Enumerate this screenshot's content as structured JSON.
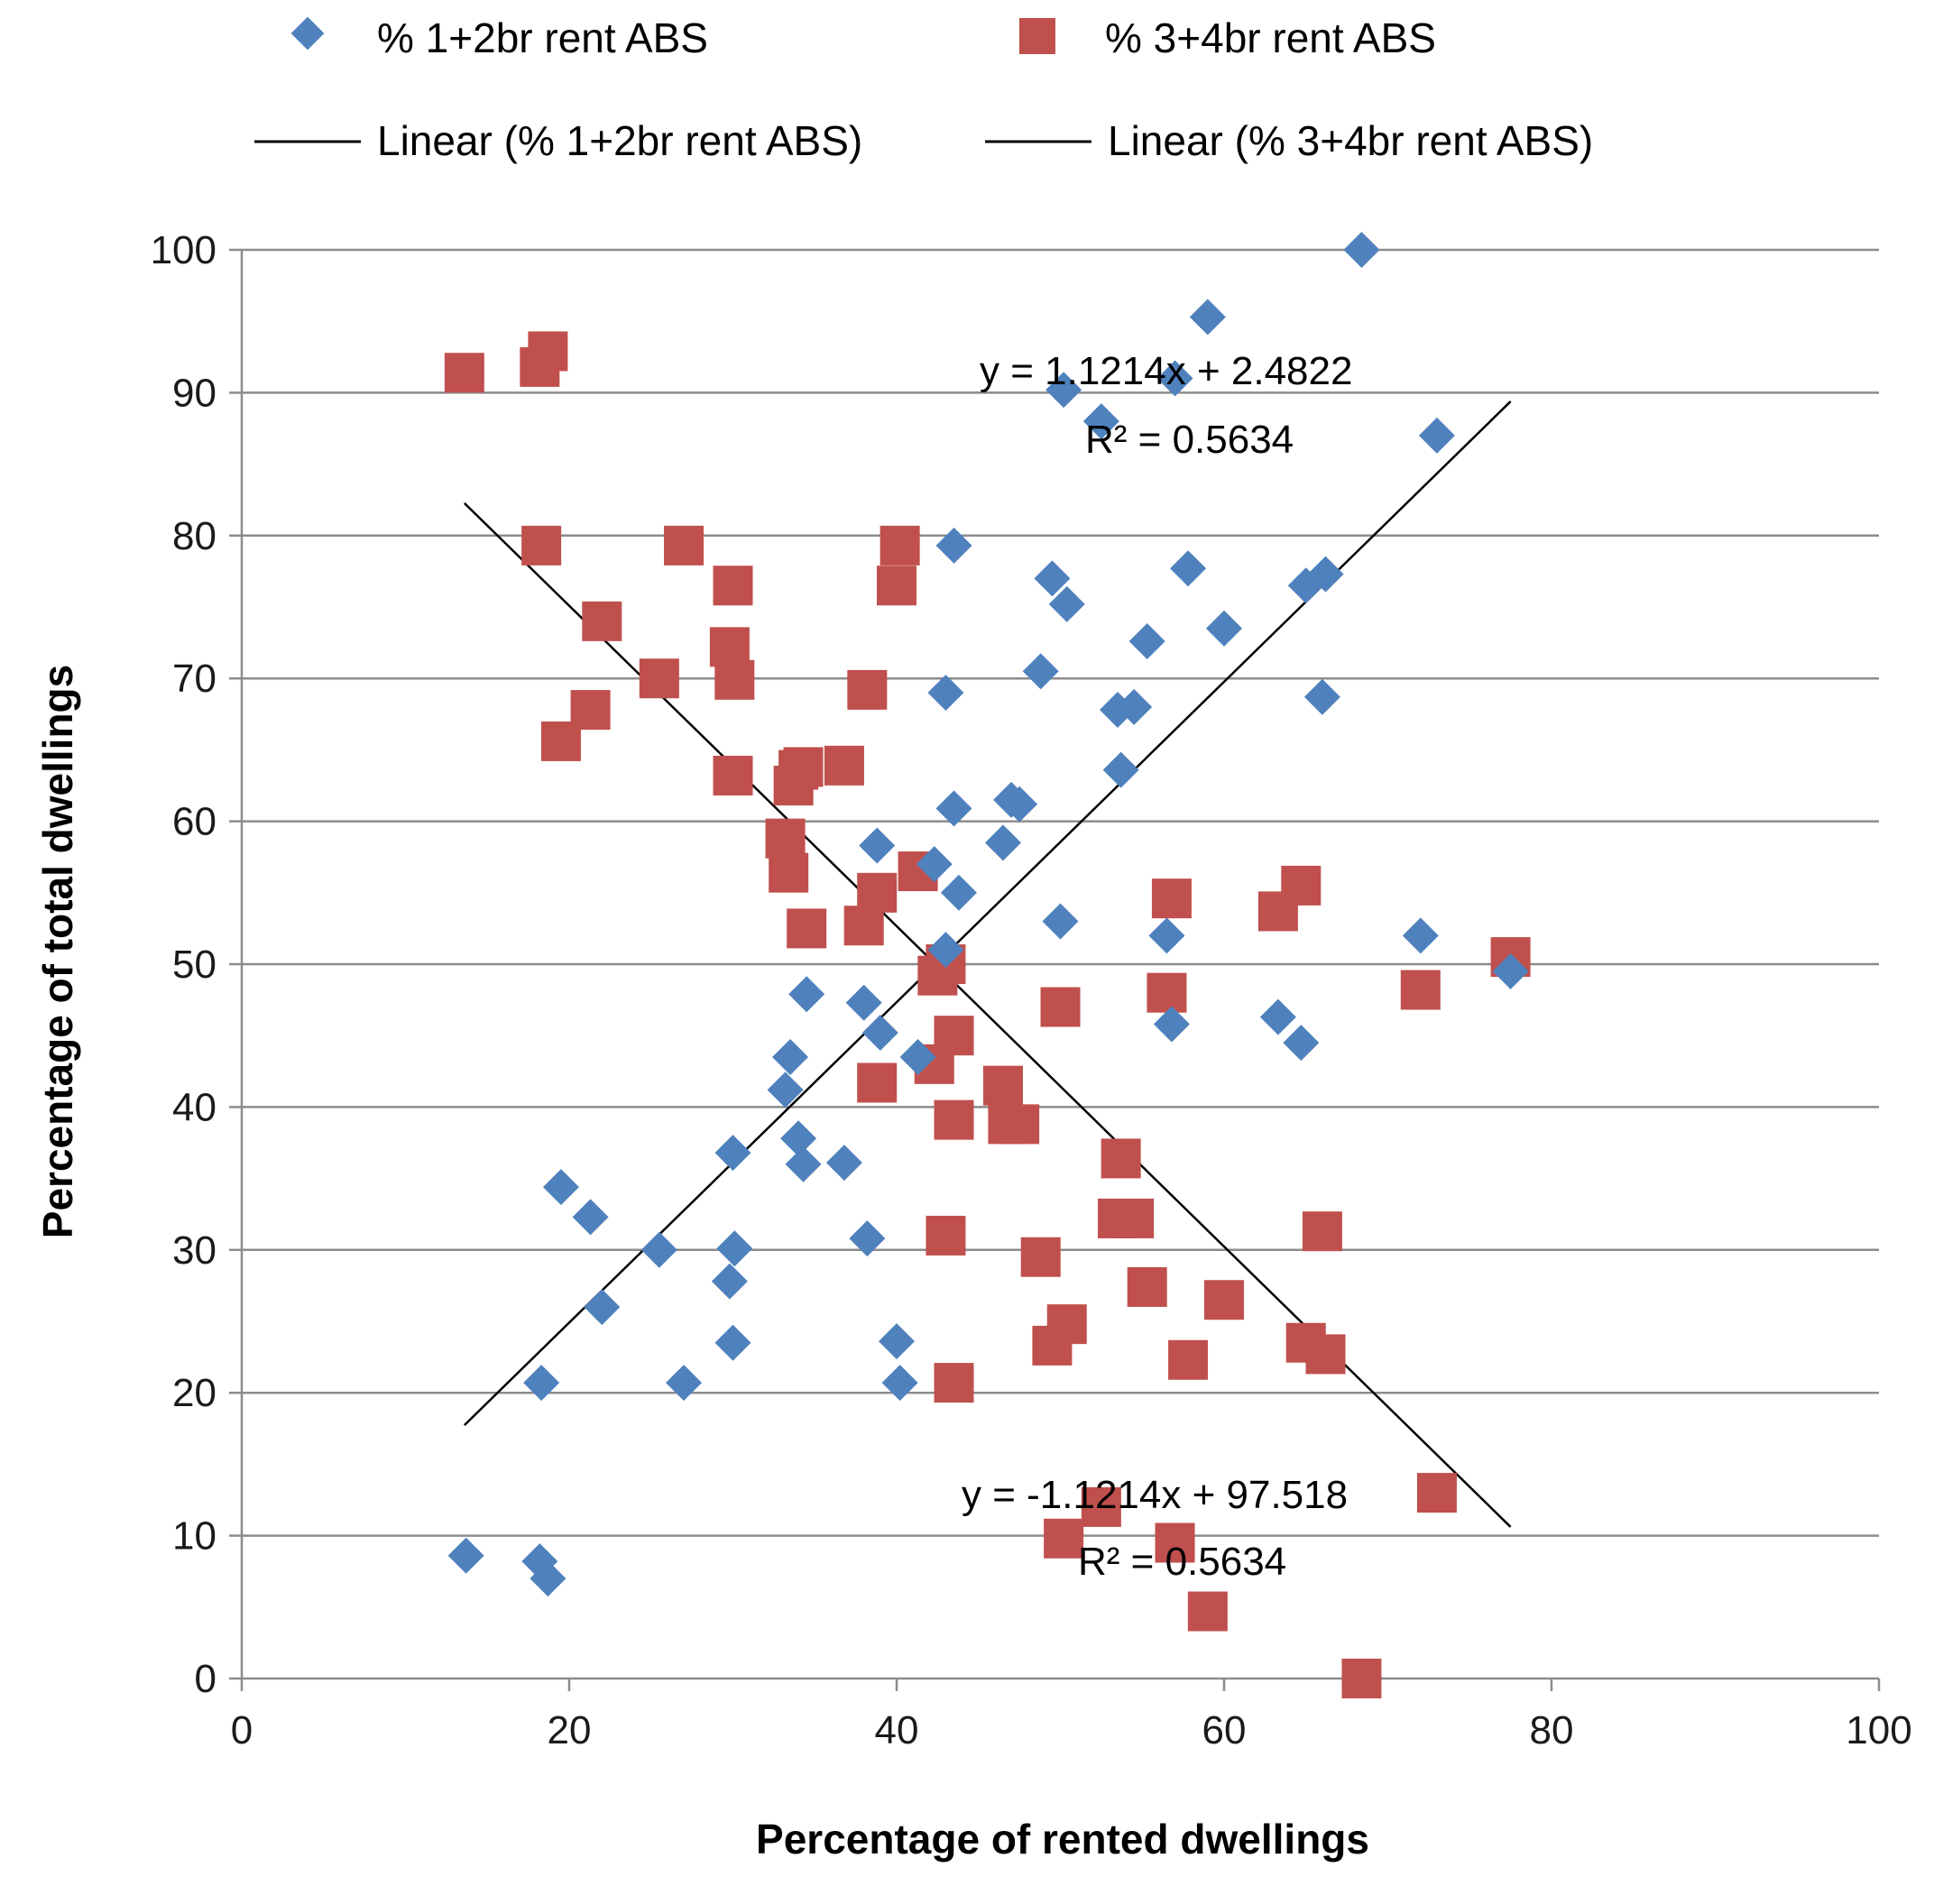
{
  "chart_data": {
    "type": "scatter",
    "title": "",
    "xlabel": "Percentage of rented dwellings",
    "ylabel": "Percentage of total dwellings",
    "xlim": [
      0,
      100
    ],
    "ylim": [
      0,
      100
    ],
    "xticks": [
      "0",
      "20",
      "40",
      "60",
      "80",
      "100"
    ],
    "yticks": [
      "0",
      "10",
      "20",
      "30",
      "40",
      "50",
      "60",
      "70",
      "80",
      "90",
      "100"
    ],
    "grid": "horizontal",
    "legend_position": "top",
    "legend": {
      "series1": "% 1+2br rent ABS",
      "series2": "% 3+4br rent ABS",
      "trend1": "Linear (% 1+2br rent ABS)",
      "trend2": "Linear (% 3+4br rent ABS)"
    },
    "series": [
      {
        "name": "% 1+2br rent ABS",
        "marker": "diamond",
        "color": "#4F81BD",
        "points": [
          [
            68.4,
            100
          ],
          [
            59,
            95.3
          ],
          [
            50.2,
            90.2
          ],
          [
            52.5,
            88
          ],
          [
            57,
            91
          ],
          [
            73,
            87
          ],
          [
            43.5,
            79.3
          ],
          [
            57.8,
            77.7
          ],
          [
            49.5,
            77
          ],
          [
            50.4,
            75.2
          ],
          [
            65,
            76.5
          ],
          [
            66.2,
            77.3
          ],
          [
            60,
            73.5
          ],
          [
            55.3,
            72.6
          ],
          [
            48.8,
            70.5
          ],
          [
            43,
            69
          ],
          [
            66,
            68.7
          ],
          [
            53.5,
            67.8
          ],
          [
            54.5,
            68
          ],
          [
            53.7,
            63.6
          ],
          [
            43.5,
            60.9
          ],
          [
            47,
            61.5
          ],
          [
            47.5,
            61.2
          ],
          [
            38.8,
            58.3
          ],
          [
            46.5,
            58.5
          ],
          [
            42.3,
            57
          ],
          [
            43.8,
            55
          ],
          [
            50,
            53
          ],
          [
            56.5,
            52
          ],
          [
            72,
            52
          ],
          [
            43,
            51
          ],
          [
            77.5,
            49.5
          ],
          [
            34.5,
            47.9
          ],
          [
            38,
            47.3
          ],
          [
            39,
            45.2
          ],
          [
            56.8,
            45.8
          ],
          [
            63.3,
            46.3
          ],
          [
            64.7,
            44.5
          ],
          [
            41.3,
            43.5
          ],
          [
            33.5,
            43.5
          ],
          [
            33.2,
            41.2
          ],
          [
            34,
            37.8
          ],
          [
            34.3,
            36
          ],
          [
            36.8,
            36.1
          ],
          [
            30,
            36.8
          ],
          [
            19.5,
            34.4
          ],
          [
            21.3,
            32.3
          ],
          [
            25.5,
            30
          ],
          [
            30.1,
            30.1
          ],
          [
            38.2,
            30.8
          ],
          [
            29.8,
            27.8
          ],
          [
            22,
            26
          ],
          [
            30,
            23.5
          ],
          [
            40,
            23.6
          ],
          [
            18.3,
            20.7
          ],
          [
            27,
            20.7
          ],
          [
            40.2,
            20.7
          ],
          [
            13.7,
            8.6
          ],
          [
            18.2,
            8.2
          ],
          [
            18.7,
            7
          ]
        ]
      },
      {
        "name": "% 3+4br rent ABS",
        "marker": "square",
        "color": "#C0504D",
        "points": [
          [
            13.6,
            91.4
          ],
          [
            18.2,
            91.8
          ],
          [
            18.7,
            92.9
          ],
          [
            18.3,
            79.3
          ],
          [
            27,
            79.3
          ],
          [
            40.2,
            79.3
          ],
          [
            30,
            76.5
          ],
          [
            40,
            76.5
          ],
          [
            22,
            74
          ],
          [
            29.8,
            72.2
          ],
          [
            25.5,
            70
          ],
          [
            30.1,
            69.9
          ],
          [
            38.2,
            69.2
          ],
          [
            21.3,
            67.8
          ],
          [
            19.5,
            65.6
          ],
          [
            30,
            63.2
          ],
          [
            34,
            63.6
          ],
          [
            36.8,
            63.9
          ],
          [
            34.3,
            63.8
          ],
          [
            33.7,
            62.5
          ],
          [
            33.2,
            58.8
          ],
          [
            33.4,
            56.4
          ],
          [
            41.3,
            56.5
          ],
          [
            38.8,
            55
          ],
          [
            34.5,
            52.5
          ],
          [
            38,
            52.7
          ],
          [
            56.8,
            54.6
          ],
          [
            63.3,
            53.7
          ],
          [
            64.7,
            55.5
          ],
          [
            43,
            50
          ],
          [
            42.5,
            49.2
          ],
          [
            56.5,
            48
          ],
          [
            72,
            48.2
          ],
          [
            77.5,
            50.5
          ],
          [
            50,
            47
          ],
          [
            43.5,
            45
          ],
          [
            42.3,
            43
          ],
          [
            38.8,
            41.7
          ],
          [
            46.5,
            41.5
          ],
          [
            47.5,
            38.8
          ],
          [
            46.8,
            38.8
          ],
          [
            43.5,
            39.1
          ],
          [
            53.7,
            36.4
          ],
          [
            53.5,
            32.2
          ],
          [
            54.5,
            32.2
          ],
          [
            66,
            31.3
          ],
          [
            43,
            31
          ],
          [
            48.8,
            29.5
          ],
          [
            55.3,
            27.4
          ],
          [
            60,
            26.5
          ],
          [
            50.4,
            24.8
          ],
          [
            49.5,
            23.3
          ],
          [
            65,
            23.5
          ],
          [
            66.2,
            22.7
          ],
          [
            57.8,
            22.3
          ],
          [
            43.5,
            20.7
          ],
          [
            52.5,
            12
          ],
          [
            73,
            13
          ],
          [
            50.2,
            9.8
          ],
          [
            57,
            9.5
          ],
          [
            59,
            4.7
          ],
          [
            68.4,
            0
          ]
        ]
      }
    ],
    "trendlines": [
      {
        "series": "% 1+2br rent ABS",
        "slope": 1.1214,
        "intercept": 2.4822,
        "x_range": [
          13.6,
          77.5
        ],
        "equation": "y = 1.1214x + 2.4822",
        "r2": "R² = 0.5634"
      },
      {
        "series": "% 3+4br rent ABS",
        "slope": -1.1214,
        "intercept": 97.518,
        "x_range": [
          13.6,
          77.5
        ],
        "equation": "y = -1.1214x + 97.518",
        "r2": "R² = 0.5634"
      }
    ]
  }
}
